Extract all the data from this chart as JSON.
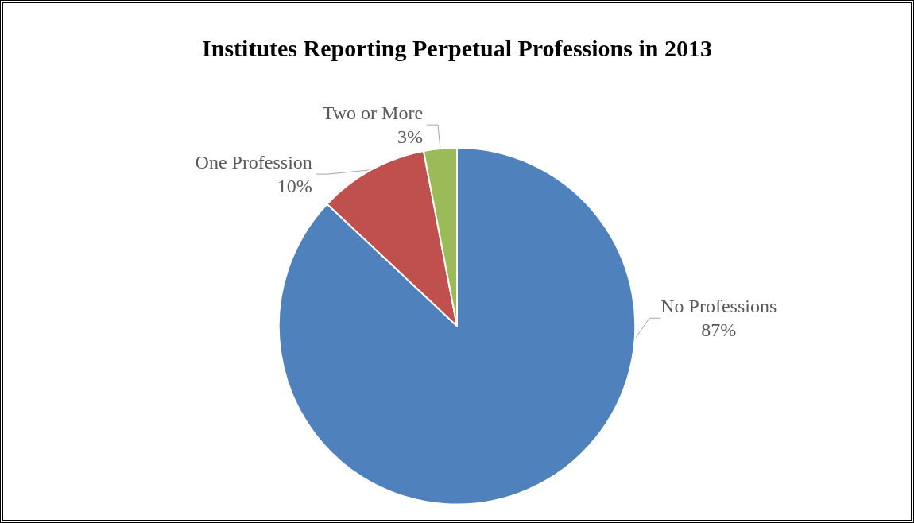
{
  "chart_data": {
    "type": "pie",
    "title": "Institutes Reporting Perpetual Professions in 2013",
    "categories": [
      "No Professions",
      "One Profession",
      "Two or More"
    ],
    "values": [
      87,
      10,
      3
    ],
    "colors": [
      "#4f81bd",
      "#c0504d",
      "#9bbb59"
    ],
    "value_labels": [
      "87%",
      "10%",
      "3%"
    ],
    "legend": false
  }
}
